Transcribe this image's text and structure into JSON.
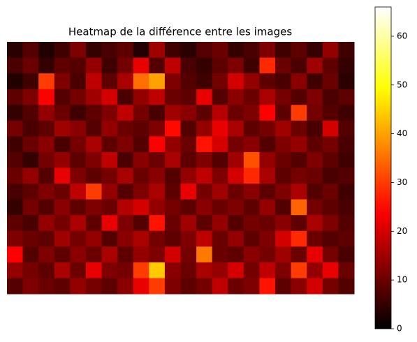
{
  "chart_data": {
    "type": "heatmap",
    "title": "Heatmap de la différence entre les images",
    "colormap": "hot",
    "zlim": [
      0,
      66
    ],
    "zticks": [
      0,
      10,
      20,
      30,
      40,
      50,
      60
    ],
    "z": [
      [
        4,
        8,
        3,
        6,
        12,
        5,
        7,
        9,
        3,
        15,
        6,
        4,
        8,
        10,
        5,
        7,
        12,
        6,
        9,
        5,
        14,
        6
      ],
      [
        7,
        10,
        5,
        9,
        8,
        14,
        6,
        11,
        22,
        8,
        18,
        7,
        5,
        9,
        12,
        6,
        28,
        10,
        7,
        15,
        9,
        5
      ],
      [
        3,
        6,
        30,
        12,
        7,
        18,
        9,
        16,
        35,
        40,
        12,
        8,
        6,
        11,
        20,
        14,
        9,
        7,
        13,
        6,
        10,
        4
      ],
      [
        9,
        12,
        24,
        8,
        11,
        15,
        20,
        7,
        14,
        18,
        10,
        9,
        22,
        8,
        13,
        10,
        16,
        11,
        8,
        12,
        7,
        9
      ],
      [
        5,
        8,
        14,
        10,
        6,
        9,
        12,
        18,
        11,
        7,
        15,
        13,
        9,
        17,
        10,
        12,
        24,
        9,
        30,
        11,
        8,
        6
      ],
      [
        11,
        7,
        9,
        15,
        13,
        8,
        14,
        10,
        9,
        12,
        25,
        8,
        14,
        22,
        16,
        9,
        11,
        15,
        10,
        7,
        20,
        8
      ],
      [
        6,
        10,
        13,
        7,
        11,
        16,
        9,
        12,
        8,
        24,
        14,
        10,
        26,
        20,
        11,
        13,
        8,
        12,
        14,
        9,
        11,
        7
      ],
      [
        8,
        5,
        11,
        14,
        9,
        12,
        18,
        7,
        13,
        10,
        16,
        9,
        12,
        8,
        15,
        32,
        14,
        10,
        8,
        12,
        9,
        6
      ],
      [
        10,
        14,
        8,
        22,
        12,
        9,
        11,
        16,
        10,
        13,
        8,
        14,
        18,
        12,
        20,
        28,
        16,
        9,
        11,
        10,
        7,
        8
      ],
      [
        7,
        9,
        12,
        10,
        18,
        30,
        14,
        8,
        12,
        16,
        9,
        22,
        11,
        15,
        10,
        13,
        9,
        12,
        16,
        8,
        10,
        6
      ],
      [
        5,
        11,
        8,
        13,
        9,
        12,
        10,
        17,
        20,
        14,
        11,
        9,
        13,
        10,
        12,
        9,
        14,
        8,
        34,
        11,
        9,
        7
      ],
      [
        9,
        7,
        14,
        11,
        16,
        9,
        22,
        12,
        8,
        26,
        10,
        15,
        9,
        14,
        8,
        11,
        10,
        13,
        9,
        16,
        12,
        8
      ],
      [
        12,
        10,
        9,
        15,
        11,
        14,
        8,
        13,
        16,
        11,
        9,
        12,
        18,
        10,
        14,
        9,
        12,
        20,
        28,
        10,
        8,
        9
      ],
      [
        24,
        8,
        12,
        9,
        13,
        10,
        16,
        9,
        14,
        12,
        20,
        11,
        36,
        10,
        9,
        13,
        11,
        15,
        10,
        22,
        11,
        7
      ],
      [
        14,
        11,
        9,
        16,
        10,
        22,
        12,
        11,
        30,
        44,
        13,
        10,
        16,
        14,
        20,
        11,
        18,
        12,
        30,
        14,
        22,
        10
      ],
      [
        8,
        12,
        10,
        9,
        14,
        11,
        9,
        13,
        22,
        30,
        12,
        9,
        11,
        18,
        10,
        12,
        26,
        9,
        13,
        20,
        11,
        8
      ]
    ]
  }
}
